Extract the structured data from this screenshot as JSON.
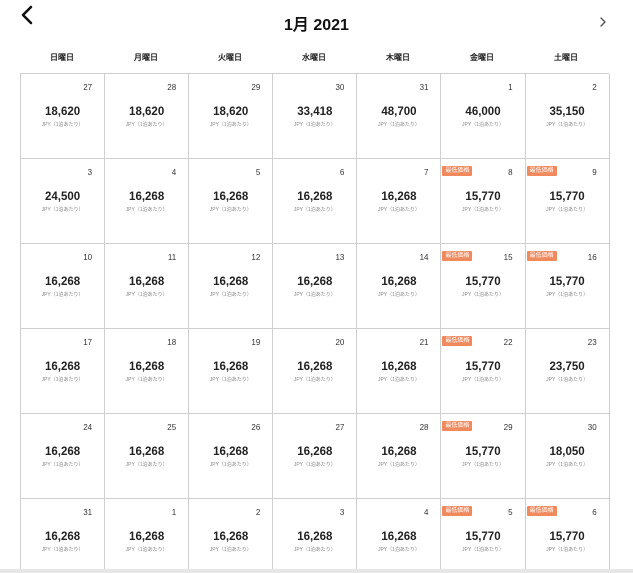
{
  "header": {
    "title": "1月 2021",
    "back_icon": "chevron-left-icon",
    "next_icon": "chevron-right-icon"
  },
  "weekdays": [
    "日曜日",
    "月曜日",
    "火曜日",
    "水曜日",
    "木曜日",
    "金曜日",
    "土曜日"
  ],
  "unit_label": "JPY（1泊あたり）",
  "badge_label": "最低価格",
  "colors": {
    "badge": "#f08a5d",
    "border": "#cfcfcf"
  },
  "days": [
    {
      "day": "27",
      "price": "18,620",
      "badge": false
    },
    {
      "day": "28",
      "price": "18,620",
      "badge": false
    },
    {
      "day": "29",
      "price": "18,620",
      "badge": false
    },
    {
      "day": "30",
      "price": "33,418",
      "badge": false
    },
    {
      "day": "31",
      "price": "48,700",
      "badge": false
    },
    {
      "day": "1",
      "price": "46,000",
      "badge": false
    },
    {
      "day": "2",
      "price": "35,150",
      "badge": false
    },
    {
      "day": "3",
      "price": "24,500",
      "badge": false
    },
    {
      "day": "4",
      "price": "16,268",
      "badge": false
    },
    {
      "day": "5",
      "price": "16,268",
      "badge": false
    },
    {
      "day": "6",
      "price": "16,268",
      "badge": false
    },
    {
      "day": "7",
      "price": "16,268",
      "badge": false
    },
    {
      "day": "8",
      "price": "15,770",
      "badge": true
    },
    {
      "day": "9",
      "price": "15,770",
      "badge": true
    },
    {
      "day": "10",
      "price": "16,268",
      "badge": false
    },
    {
      "day": "11",
      "price": "16,268",
      "badge": false
    },
    {
      "day": "12",
      "price": "16,268",
      "badge": false
    },
    {
      "day": "13",
      "price": "16,268",
      "badge": false
    },
    {
      "day": "14",
      "price": "16,268",
      "badge": false
    },
    {
      "day": "15",
      "price": "15,770",
      "badge": true
    },
    {
      "day": "16",
      "price": "15,770",
      "badge": true
    },
    {
      "day": "17",
      "price": "16,268",
      "badge": false
    },
    {
      "day": "18",
      "price": "16,268",
      "badge": false
    },
    {
      "day": "19",
      "price": "16,268",
      "badge": false
    },
    {
      "day": "20",
      "price": "16,268",
      "badge": false
    },
    {
      "day": "21",
      "price": "16,268",
      "badge": false
    },
    {
      "day": "22",
      "price": "15,770",
      "badge": true
    },
    {
      "day": "23",
      "price": "23,750",
      "badge": false
    },
    {
      "day": "24",
      "price": "16,268",
      "badge": false
    },
    {
      "day": "25",
      "price": "16,268",
      "badge": false
    },
    {
      "day": "26",
      "price": "16,268",
      "badge": false
    },
    {
      "day": "27",
      "price": "16,268",
      "badge": false
    },
    {
      "day": "28",
      "price": "16,268",
      "badge": false
    },
    {
      "day": "29",
      "price": "15,770",
      "badge": true
    },
    {
      "day": "30",
      "price": "18,050",
      "badge": false
    },
    {
      "day": "31",
      "price": "16,268",
      "badge": false
    },
    {
      "day": "1",
      "price": "16,268",
      "badge": false
    },
    {
      "day": "2",
      "price": "16,268",
      "badge": false
    },
    {
      "day": "3",
      "price": "16,268",
      "badge": false
    },
    {
      "day": "4",
      "price": "16,268",
      "badge": false
    },
    {
      "day": "5",
      "price": "15,770",
      "badge": true
    },
    {
      "day": "6",
      "price": "15,770",
      "badge": true
    }
  ]
}
